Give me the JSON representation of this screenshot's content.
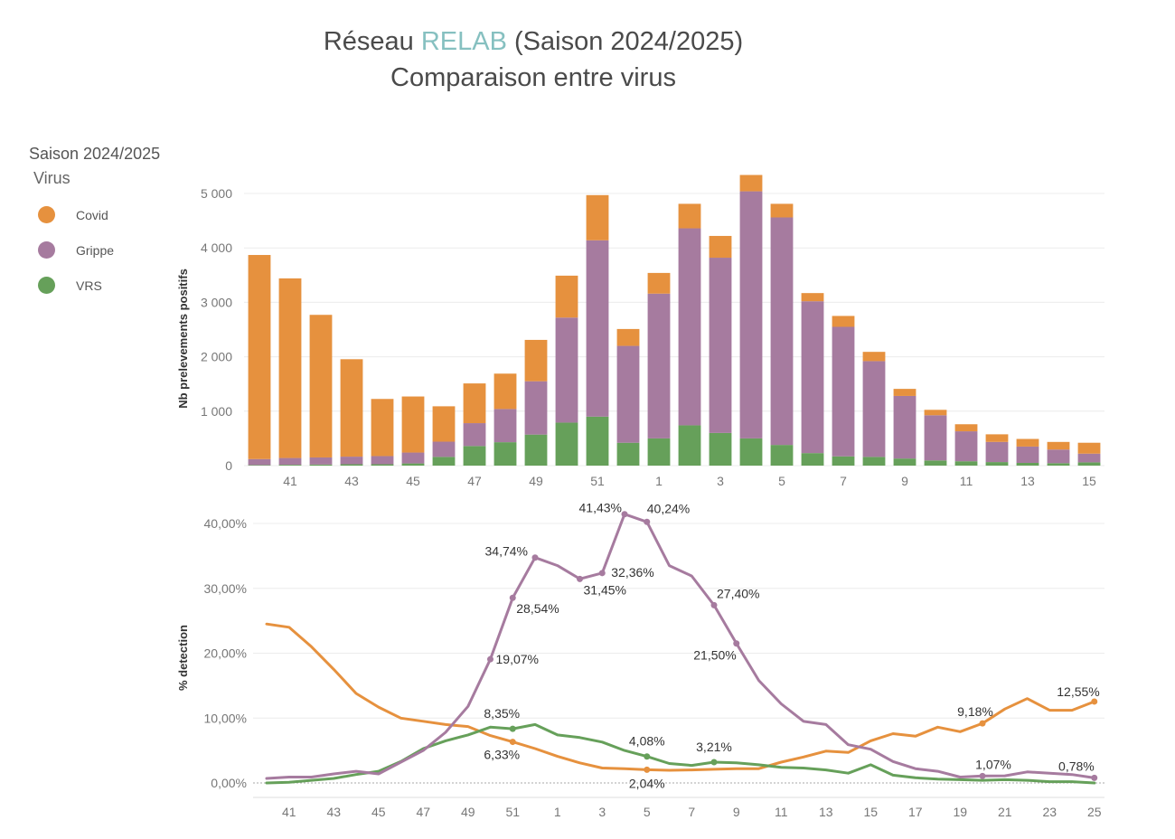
{
  "title": {
    "line1_prefix": "Réseau ",
    "line1_accent": "RELAB",
    "line1_suffix": " (Saison 2024/2025)",
    "line2": "Comparaison entre virus"
  },
  "legend": {
    "title": "Saison 2024/2025",
    "subtitle": "Virus",
    "items": [
      {
        "label": "Covid",
        "color": "#e6913e"
      },
      {
        "label": "Grippe",
        "color": "#a67b9f"
      },
      {
        "label": "VRS",
        "color": "#66a05a"
      }
    ]
  },
  "chart_data": [
    {
      "type": "bar",
      "stacked": true,
      "title": "",
      "xlabel": "",
      "ylabel": "Nb prelevements positifs",
      "ylim": [
        0,
        5000
      ],
      "yticks": [
        "0",
        "1 000",
        "2 000",
        "3 000",
        "4 000",
        "5 000"
      ],
      "xtick_labels": [
        "41",
        "43",
        "45",
        "47",
        "49",
        "51",
        "1",
        "3",
        "5",
        "7",
        "9",
        "11",
        "13",
        "15"
      ],
      "categories": [
        "40",
        "41",
        "42",
        "43",
        "44",
        "45",
        "46",
        "47",
        "48",
        "49",
        "50",
        "51",
        "52",
        "1",
        "2",
        "3",
        "4",
        "5",
        "6",
        "7",
        "8",
        "9",
        "10",
        "11",
        "12",
        "13",
        "14",
        "15"
      ],
      "series": [
        {
          "name": "VRS",
          "color": "#66a05a",
          "values": [
            10,
            15,
            20,
            25,
            25,
            40,
            160,
            360,
            430,
            570,
            790,
            900,
            420,
            500,
            740,
            600,
            500,
            380,
            230,
            170,
            160,
            130,
            95,
            80,
            65,
            50,
            45,
            60
          ]
        },
        {
          "name": "Grippe",
          "color": "#a67b9f",
          "values": [
            110,
            125,
            130,
            140,
            150,
            200,
            280,
            420,
            610,
            980,
            1930,
            3240,
            1780,
            2660,
            3620,
            3220,
            4540,
            4180,
            2790,
            2380,
            1760,
            1150,
            830,
            550,
            370,
            300,
            250,
            160
          ]
        },
        {
          "name": "Covid",
          "color": "#e6913e",
          "values": [
            3750,
            3300,
            2620,
            1790,
            1050,
            1030,
            650,
            730,
            650,
            760,
            770,
            830,
            310,
            380,
            450,
            400,
            300,
            250,
            150,
            200,
            170,
            130,
            100,
            130,
            140,
            140,
            140,
            200
          ]
        }
      ]
    },
    {
      "type": "line",
      "title": "",
      "xlabel": "",
      "ylabel": "% detection",
      "ylim": [
        0,
        40
      ],
      "yticks": [
        "0,00%",
        "10,00%",
        "20,00%",
        "30,00%",
        "40,00%"
      ],
      "xtick_labels": [
        "41",
        "43",
        "45",
        "47",
        "49",
        "51",
        "1",
        "3",
        "5",
        "7",
        "9",
        "11",
        "13",
        "15",
        "17",
        "19",
        "21",
        "23",
        "25"
      ],
      "categories": [
        "40",
        "41",
        "42",
        "43",
        "44",
        "45",
        "46",
        "47",
        "48",
        "49",
        "50",
        "51",
        "52",
        "1",
        "2",
        "3",
        "4",
        "5",
        "6",
        "7",
        "8",
        "9",
        "10",
        "11",
        "12",
        "13",
        "14",
        "15",
        "16",
        "17",
        "18",
        "19",
        "20",
        "21",
        "22",
        "23",
        "24",
        "25"
      ],
      "series": [
        {
          "name": "Covid",
          "color": "#e6913e",
          "values": [
            24.5,
            24.0,
            21.0,
            17.5,
            13.8,
            11.7,
            10.0,
            9.5,
            9.0,
            8.7,
            7.3,
            6.33,
            5.3,
            4.1,
            3.1,
            2.3,
            2.2,
            2.04,
            1.95,
            2.0,
            2.1,
            2.2,
            2.2,
            3.2,
            4.0,
            4.9,
            4.7,
            6.5,
            7.6,
            7.2,
            8.6,
            7.9,
            9.18,
            11.4,
            13.0,
            11.2,
            11.2,
            12.55
          ]
        },
        {
          "name": "Grippe",
          "color": "#a67b9f",
          "values": [
            0.7,
            0.9,
            0.9,
            1.4,
            1.8,
            1.4,
            3.2,
            5.0,
            7.8,
            11.8,
            19.07,
            28.54,
            34.74,
            33.5,
            31.45,
            32.36,
            41.43,
            40.24,
            33.5,
            31.9,
            27.4,
            21.5,
            15.8,
            12.2,
            9.5,
            9.0,
            5.9,
            5.2,
            3.3,
            2.2,
            1.8,
            0.9,
            1.07,
            1.1,
            1.7,
            1.5,
            1.3,
            0.78
          ]
        },
        {
          "name": "VRS",
          "color": "#66a05a",
          "values": [
            0.0,
            0.1,
            0.4,
            0.7,
            1.3,
            1.8,
            3.3,
            5.3,
            6.5,
            7.4,
            8.6,
            8.35,
            9.0,
            7.4,
            7.0,
            6.3,
            5.0,
            4.08,
            3.0,
            2.7,
            3.21,
            3.1,
            2.8,
            2.4,
            2.3,
            2.0,
            1.5,
            2.8,
            1.2,
            0.8,
            0.6,
            0.5,
            0.4,
            0.5,
            0.4,
            0.2,
            0.2,
            0.0
          ]
        }
      ],
      "annotations": [
        {
          "series": "Grippe",
          "category": "50",
          "text": "19,07%"
        },
        {
          "series": "Grippe",
          "category": "51",
          "text": "28,54%"
        },
        {
          "series": "Grippe",
          "category": "52",
          "text": "34,74%"
        },
        {
          "series": "Grippe",
          "category": "2",
          "text": "31,45%"
        },
        {
          "series": "Grippe",
          "category": "3",
          "text": "32,36%"
        },
        {
          "series": "Grippe",
          "category": "4",
          "text": "41,43%"
        },
        {
          "series": "Grippe",
          "category": "5",
          "text": "40,24%"
        },
        {
          "series": "Grippe",
          "category": "8",
          "text": "27,40%"
        },
        {
          "series": "Grippe",
          "category": "9",
          "text": "21,50%"
        },
        {
          "series": "Grippe",
          "category": "20",
          "text": "1,07%"
        },
        {
          "series": "Grippe",
          "category": "25",
          "text": "0,78%"
        },
        {
          "series": "VRS",
          "category": "51",
          "text": "8,35%"
        },
        {
          "series": "VRS",
          "category": "5",
          "text": "4,08%"
        },
        {
          "series": "VRS",
          "category": "8",
          "text": "3,21%"
        },
        {
          "series": "Covid",
          "category": "51",
          "text": "6,33%"
        },
        {
          "series": "Covid",
          "category": "5",
          "text": "2,04%"
        },
        {
          "series": "Covid",
          "category": "20",
          "text": "9,18%"
        },
        {
          "series": "Covid",
          "category": "25",
          "text": "12,55%"
        }
      ]
    }
  ]
}
